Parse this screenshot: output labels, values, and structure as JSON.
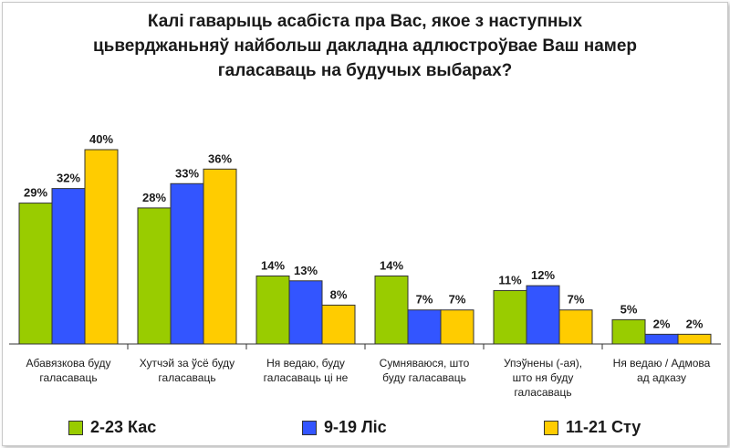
{
  "chart_data": {
    "type": "bar",
    "title_lines": [
      "Калі гаварыць асабіста пра Вас, якое з наступных",
      "цьверджаньняў найбольш дакладна адлюстроўвае Ваш намер",
      "галасаваць на будучых выбарах?"
    ],
    "categories": [
      [
        "Абавязкова буду",
        "галасаваць"
      ],
      [
        "Хутчэй за ўсё буду",
        "галасаваць"
      ],
      [
        "Ня ведаю, буду",
        "галасаваць ці не"
      ],
      [
        "Сумняваюся, што",
        "буду галасаваць"
      ],
      [
        "Упэўнены (-ая),",
        "што ня буду",
        "галасаваць"
      ],
      [
        "Ня ведаю / Адмова",
        "ад адказу"
      ]
    ],
    "series": [
      {
        "name": "2-23 Кас",
        "color": "#99cc00",
        "values": [
          29,
          28,
          14,
          14,
          11,
          5
        ]
      },
      {
        "name": "9-19 Ліс",
        "color": "#3355ff",
        "values": [
          32,
          33,
          13,
          7,
          12,
          2
        ]
      },
      {
        "name": "11-21 Сту",
        "color": "#ffcc00",
        "values": [
          40,
          36,
          8,
          7,
          7,
          2
        ]
      }
    ],
    "value_suffix": "%",
    "ylim": [
      0,
      40
    ],
    "grid": false,
    "legend_position": "bottom"
  }
}
